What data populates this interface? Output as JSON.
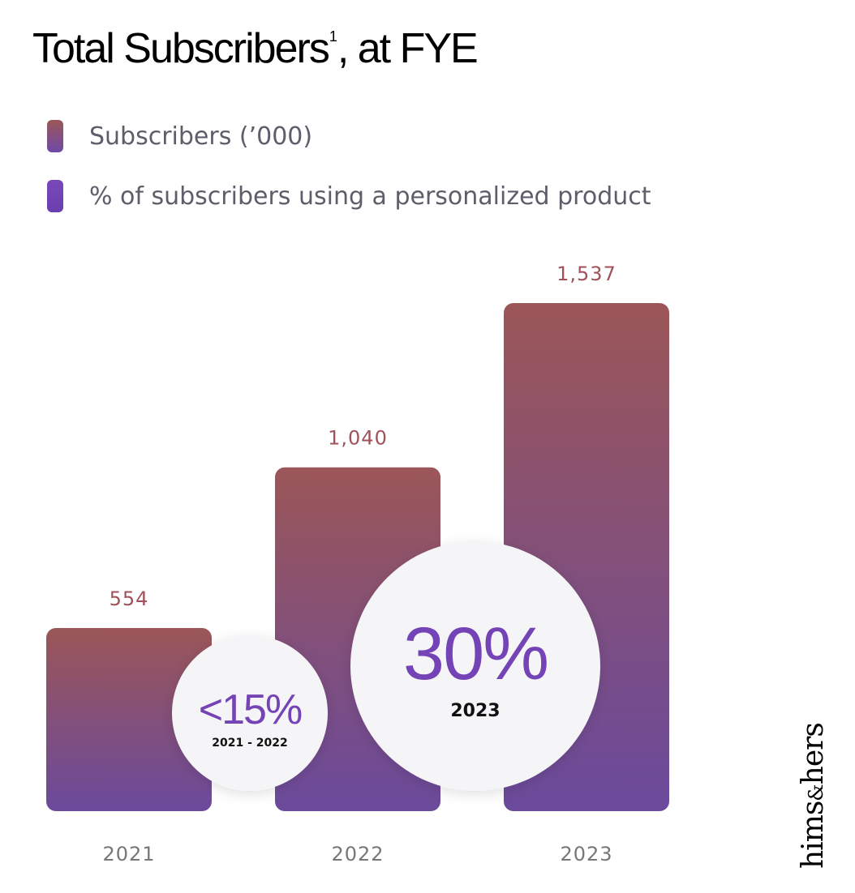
{
  "header": {
    "title": "Total Subscribers",
    "title_sup": "1",
    "title_suffix": ", at FYE"
  },
  "legend": [
    {
      "label": "Subscribers (’000)",
      "color_top": "#9c5656",
      "color_bottom": "#6e4aa8"
    },
    {
      "label": "% of subscribers using a personalized product",
      "color_top": "#7a48b8",
      "color_bottom": "#6a3fb0"
    }
  ],
  "chart_data": {
    "type": "bar",
    "categories": [
      "2021",
      "2022",
      "2023"
    ],
    "series": [
      {
        "name": "Subscribers (’000)",
        "values": [
          554,
          1040,
          1537
        ]
      }
    ],
    "value_labels": [
      "554",
      "1,040",
      "1,537"
    ],
    "ylim": [
      0,
      1537
    ],
    "grid": false,
    "legend_position": "top-left",
    "colors": {
      "bar_top": "#9b5657",
      "bar_bottom": "#6b4a9c",
      "value_label": "#a0525a",
      "axis_label": "#777777",
      "callout_text": "#7443b5"
    },
    "callouts": [
      {
        "value": "<15%",
        "period": "2021 - 2022"
      },
      {
        "value": "30%",
        "period": "2023"
      }
    ]
  },
  "logo": {
    "text_left": "hims",
    "text_amp": "&",
    "text_right": "hers"
  }
}
